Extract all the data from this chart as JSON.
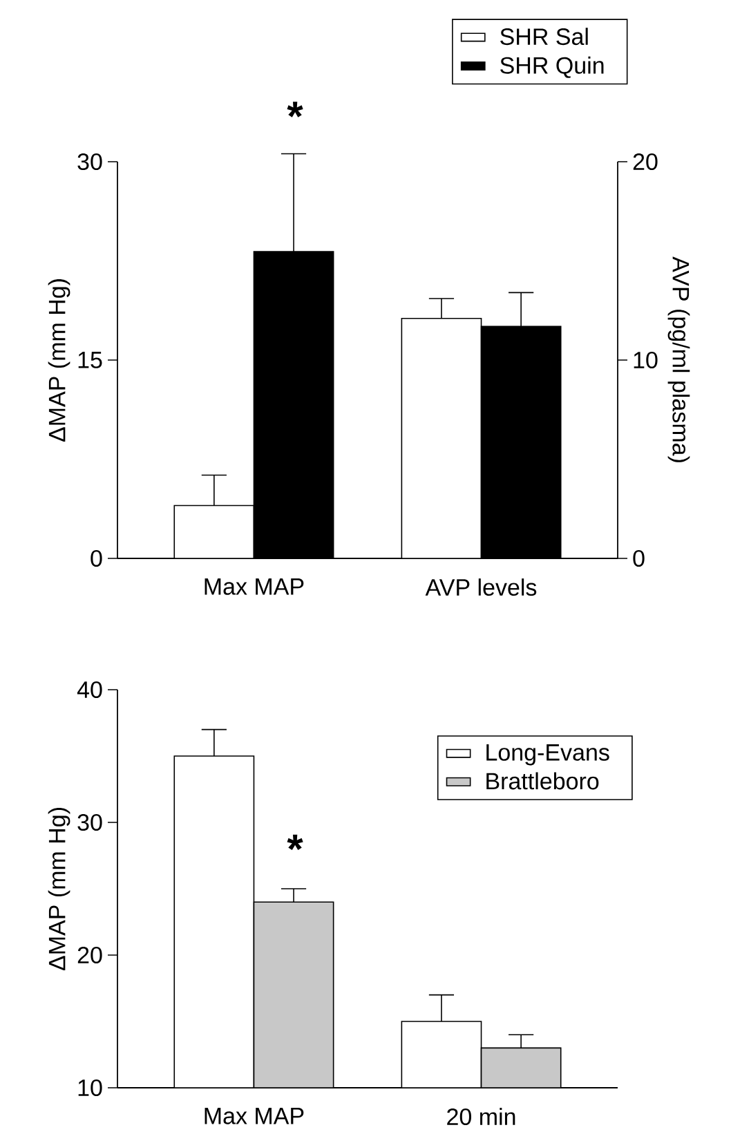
{
  "chart_data": [
    {
      "type": "bar",
      "ylabel": "ΔMAP (mm Hg)",
      "y2label": "AVP (pg/ml plasma)",
      "categories": [
        "Max MAP",
        "AVP levels"
      ],
      "series": [
        {
          "name": "SHR Sal",
          "color": "#ffffff",
          "values": [
            4.0,
            null
          ],
          "errors": [
            [
              4.0,
              6.3
            ],
            null
          ]
        },
        {
          "name": "SHR Quin",
          "color": "#000000",
          "values": [
            23.2,
            null
          ],
          "errors": [
            [
              23.2,
              30.6
            ],
            null
          ]
        },
        {
          "color": "#ffffff",
          "axis": "y2",
          "values": [
            null,
            12.1
          ],
          "errors": [
            null,
            [
              12.1,
              13.1
            ]
          ]
        },
        {
          "color": "#000000",
          "axis": "y2",
          "values": [
            null,
            11.7
          ],
          "errors": [
            null,
            [
              11.7,
              13.4
            ]
          ]
        }
      ],
      "ylim": [
        0,
        30
      ],
      "yticks": [
        0,
        15,
        30
      ],
      "y2lim": [
        0,
        20
      ],
      "y2ticks": [
        0,
        10,
        20
      ],
      "legend": "top right",
      "annotations": [
        "*"
      ]
    },
    {
      "type": "bar",
      "ylabel": "ΔMAP (mm Hg)",
      "categories": [
        "Max MAP",
        "20 min"
      ],
      "series": [
        {
          "name": "Long-Evans",
          "color": "#ffffff",
          "values": [
            35,
            15
          ],
          "errors": [
            [
              35,
              37
            ],
            [
              15,
              17
            ]
          ]
        },
        {
          "name": "Brattleboro",
          "color": "#c8c8c8",
          "values": [
            24,
            13
          ],
          "errors": [
            [
              24,
              25
            ],
            [
              13,
              14
            ]
          ]
        }
      ],
      "ylim": [
        10,
        40
      ],
      "yticks": [
        10,
        20,
        30,
        40
      ],
      "legend": "top right",
      "annotations": [
        "*"
      ]
    }
  ]
}
